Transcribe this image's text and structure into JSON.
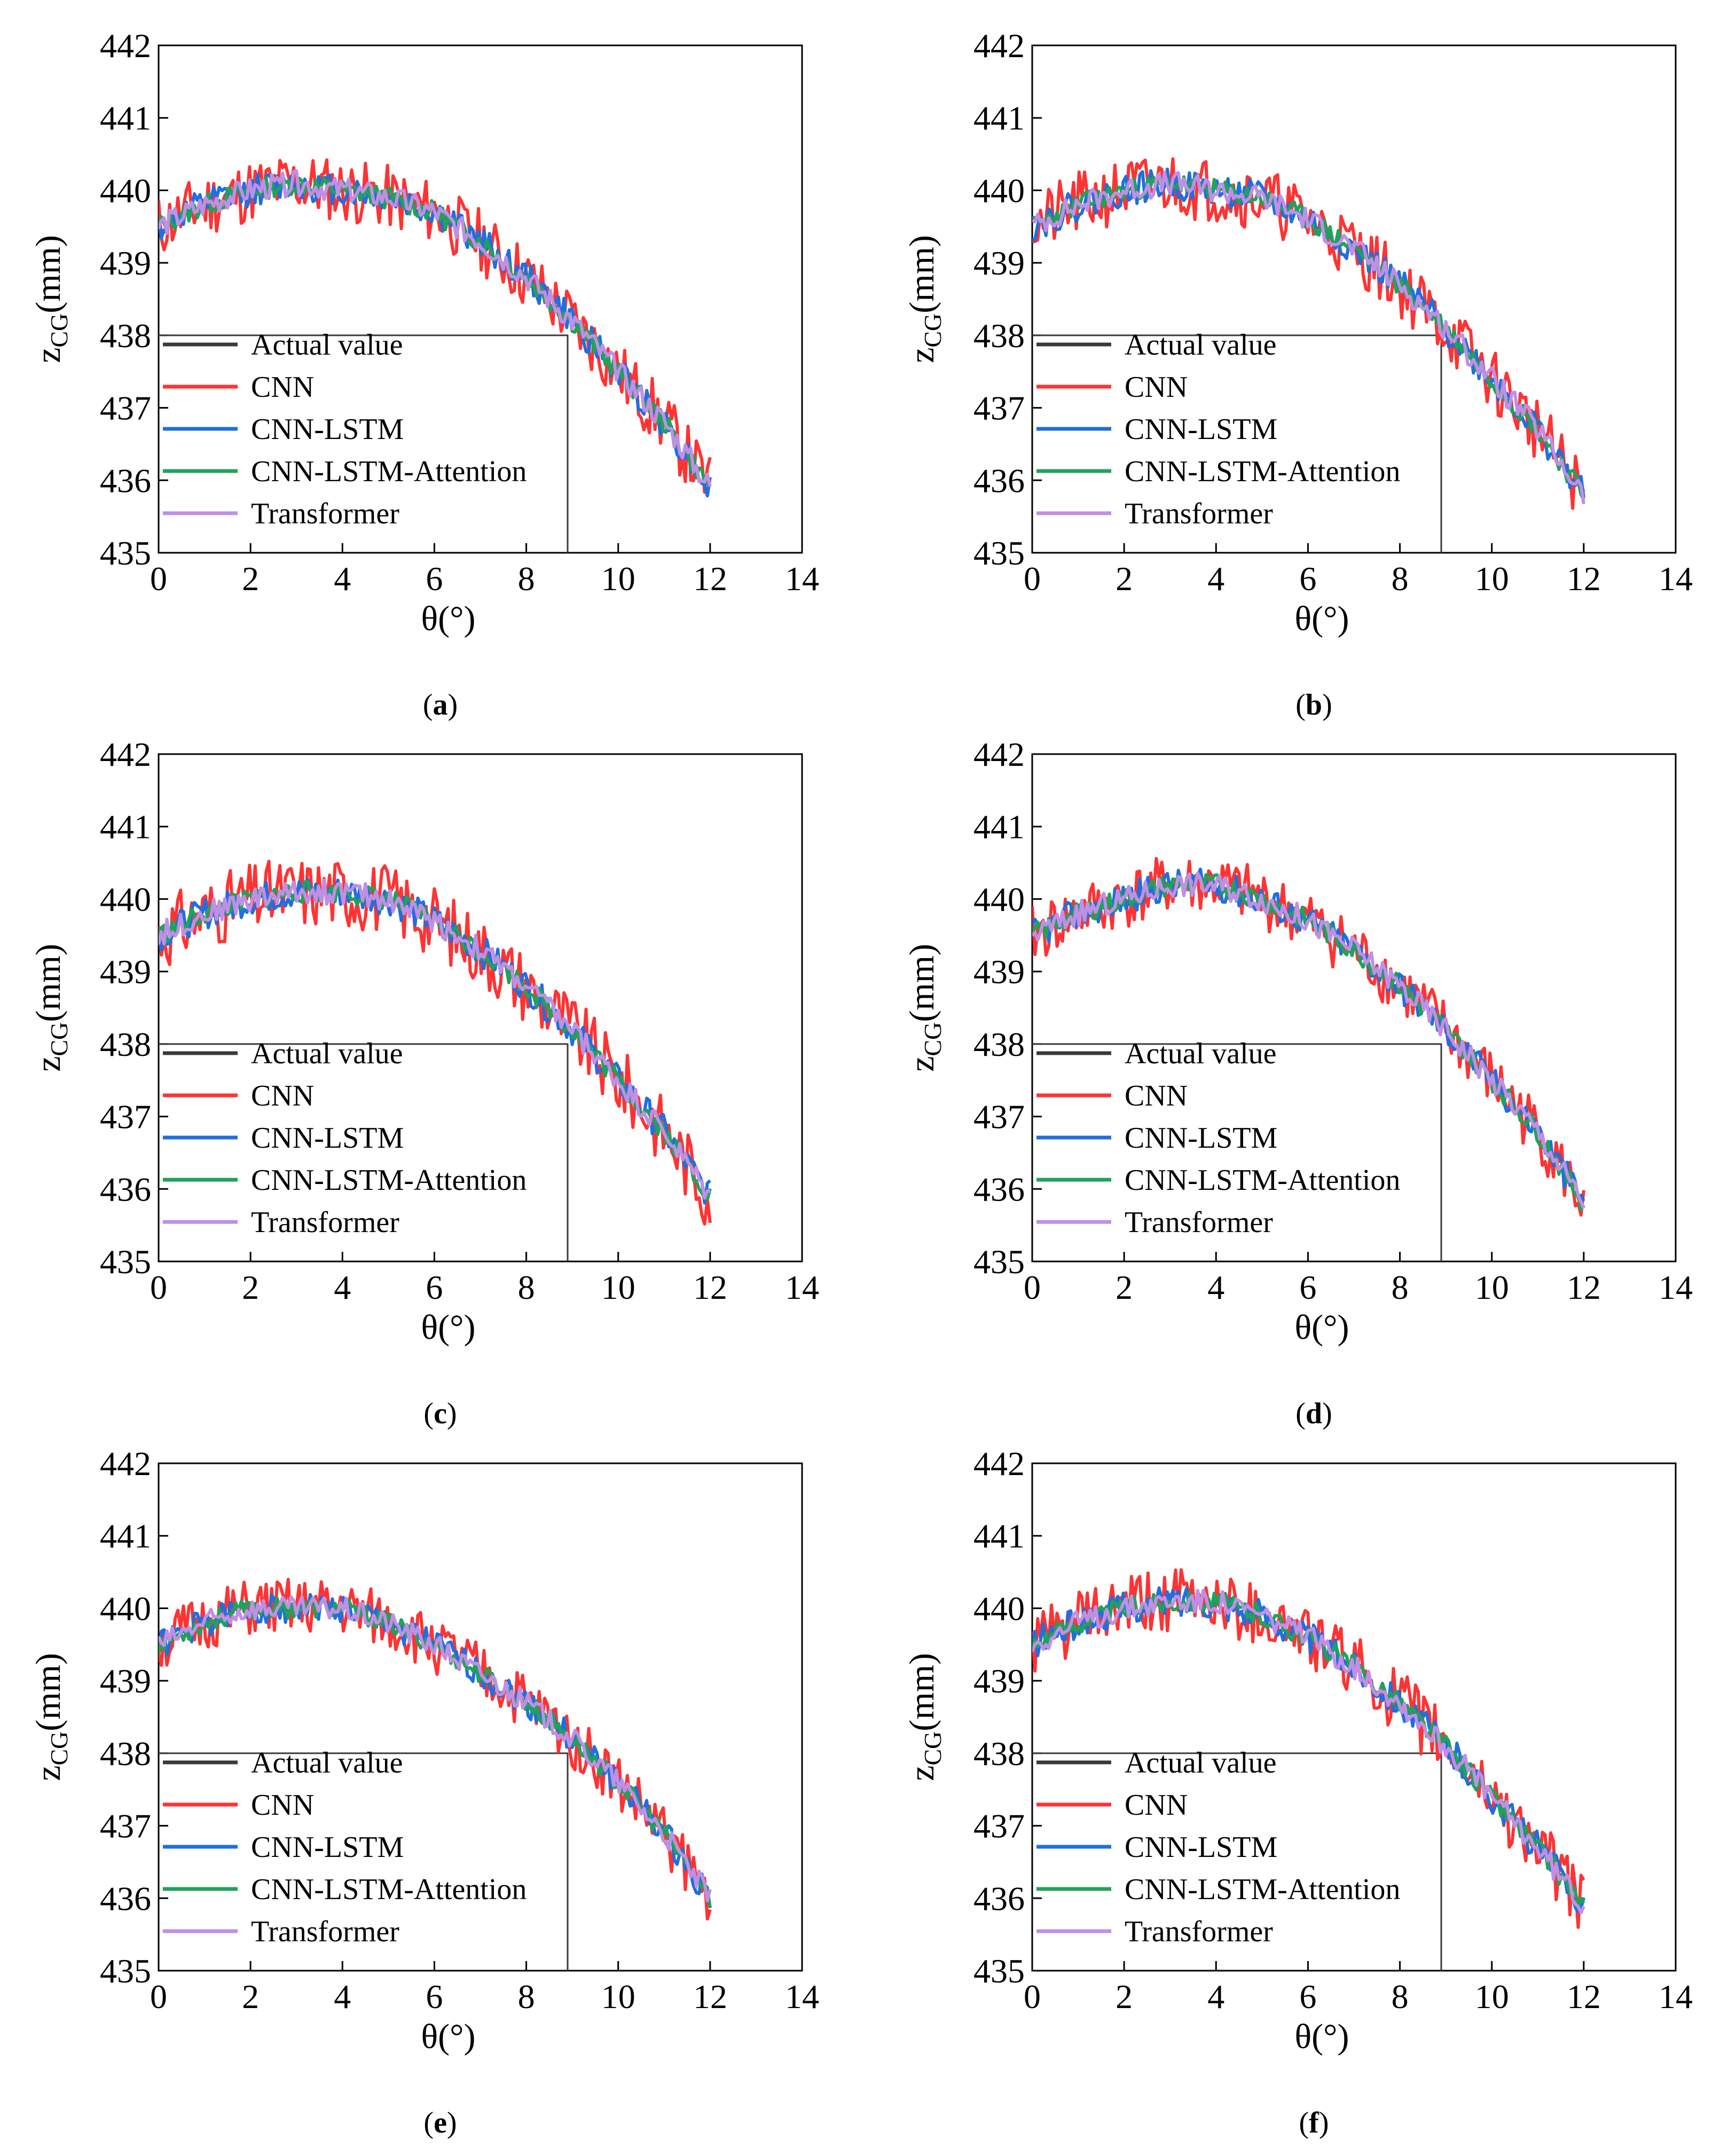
{
  "figure": {
    "panel_count": 6
  },
  "chart_data": [
    {
      "type": "line",
      "caption": "a",
      "xlabel": "θ(°)",
      "ylabel": "z",
      "ylabel_subscript": "CG",
      "ylabel_unit": "(mm)",
      "xlim": [
        0,
        14
      ],
      "ylim": [
        435,
        442
      ],
      "xticks": [
        "0",
        "2",
        "4",
        "6",
        "8",
        "10",
        "12",
        "14"
      ],
      "yticks": [
        "435",
        "436",
        "437",
        "438",
        "439",
        "440",
        "441",
        "442"
      ],
      "legend": {
        "placement": "bottom-left",
        "entries": [
          "Actual value",
          "CNN",
          "CNN-LSTM",
          "CNN-LSTM-Attention",
          "Transformer"
        ]
      },
      "series": [
        {
          "name": "Actual value",
          "color": "#3a3a3a",
          "x": [
            0,
            8.9,
            8.9
          ],
          "y": [
            438,
            438,
            435
          ]
        },
        {
          "name": "CNN",
          "color": "#ff3333",
          "noise": 0.45,
          "seed": 11
        },
        {
          "name": "CNN-LSTM",
          "color": "#1f6fe0",
          "noise": 0.22,
          "seed": 12
        },
        {
          "name": "CNN-LSTM-Attention",
          "color": "#1fa35a",
          "noise": 0.15,
          "seed": 13
        },
        {
          "name": "Transformer",
          "color": "#c08fe6",
          "noise": 0.17,
          "seed": 14
        }
      ],
      "trend": {
        "x": [
          0,
          1,
          2,
          3,
          4,
          5,
          6,
          7,
          8,
          9,
          10,
          11,
          12
        ],
        "y": [
          439.5,
          439.8,
          440.0,
          440.1,
          440.0,
          439.9,
          439.7,
          439.3,
          438.8,
          438.2,
          437.5,
          436.8,
          435.9
        ]
      }
    },
    {
      "type": "line",
      "caption": "b",
      "xlabel": "θ(°)",
      "ylabel": "z",
      "ylabel_subscript": "CG",
      "ylabel_unit": "(mm)",
      "xlim": [
        0,
        14
      ],
      "ylim": [
        435,
        442
      ],
      "xticks": [
        "0",
        "2",
        "4",
        "6",
        "8",
        "10",
        "12",
        "14"
      ],
      "yticks": [
        "435",
        "436",
        "437",
        "438",
        "439",
        "440",
        "441",
        "442"
      ],
      "legend": {
        "placement": "bottom-left",
        "entries": [
          "Actual value",
          "CNN",
          "CNN-LSTM",
          "CNN-LSTM-Attention",
          "Transformer"
        ]
      },
      "series": [
        {
          "name": "Actual value",
          "color": "#3a3a3a",
          "x": [
            0,
            8.9,
            8.9
          ],
          "y": [
            438,
            438,
            435
          ]
        },
        {
          "name": "CNN",
          "color": "#ff3333",
          "noise": 0.45,
          "seed": 21
        },
        {
          "name": "CNN-LSTM",
          "color": "#1f6fe0",
          "noise": 0.22,
          "seed": 22
        },
        {
          "name": "CNN-LSTM-Attention",
          "color": "#1fa35a",
          "noise": 0.15,
          "seed": 23
        },
        {
          "name": "Transformer",
          "color": "#c08fe6",
          "noise": 0.17,
          "seed": 24
        }
      ],
      "trend": {
        "x": [
          0,
          1,
          2,
          3,
          4,
          5,
          6,
          7,
          8,
          9,
          10,
          11,
          12
        ],
        "y": [
          439.5,
          439.8,
          440.0,
          440.1,
          440.0,
          439.9,
          439.6,
          439.2,
          438.7,
          438.1,
          437.4,
          436.7,
          435.8
        ]
      }
    },
    {
      "type": "line",
      "caption": "c",
      "xlabel": "θ(°)",
      "ylabel": "z",
      "ylabel_subscript": "CG",
      "ylabel_unit": "(mm)",
      "xlim": [
        0,
        14
      ],
      "ylim": [
        435,
        442
      ],
      "xticks": [
        "0",
        "2",
        "4",
        "6",
        "8",
        "10",
        "12",
        "14"
      ],
      "yticks": [
        "435",
        "436",
        "437",
        "438",
        "439",
        "440",
        "441",
        "442"
      ],
      "legend": {
        "placement": "bottom-left",
        "entries": [
          "Actual value",
          "CNN",
          "CNN-LSTM",
          "CNN-LSTM-Attention",
          "Transformer"
        ]
      },
      "series": [
        {
          "name": "Actual value",
          "color": "#3a3a3a",
          "x": [
            0,
            8.9,
            8.9
          ],
          "y": [
            438,
            438,
            435
          ]
        },
        {
          "name": "CNN",
          "color": "#ff3333",
          "noise": 0.5,
          "seed": 31
        },
        {
          "name": "CNN-LSTM",
          "color": "#1f6fe0",
          "noise": 0.22,
          "seed": 32
        },
        {
          "name": "CNN-LSTM-Attention",
          "color": "#1fa35a",
          "noise": 0.15,
          "seed": 33
        },
        {
          "name": "Transformer",
          "color": "#c08fe6",
          "noise": 0.17,
          "seed": 34
        }
      ],
      "trend": {
        "x": [
          0,
          1,
          2,
          3,
          4,
          5,
          6,
          7,
          8,
          9,
          10,
          11,
          12
        ],
        "y": [
          439.5,
          439.8,
          440.0,
          440.1,
          440.1,
          440.0,
          439.7,
          439.3,
          438.8,
          438.2,
          437.5,
          436.8,
          435.9
        ]
      }
    },
    {
      "type": "line",
      "caption": "d",
      "xlabel": "θ(°)",
      "ylabel": "z",
      "ylabel_subscript": "CG",
      "ylabel_unit": "(mm)",
      "xlim": [
        0,
        14
      ],
      "ylim": [
        435,
        442
      ],
      "xticks": [
        "0",
        "2",
        "4",
        "6",
        "8",
        "10",
        "12",
        "14"
      ],
      "yticks": [
        "435",
        "436",
        "437",
        "438",
        "439",
        "440",
        "441",
        "442"
      ],
      "legend": {
        "placement": "bottom-left",
        "entries": [
          "Actual value",
          "CNN",
          "CNN-LSTM",
          "CNN-LSTM-Attention",
          "Transformer"
        ]
      },
      "series": [
        {
          "name": "Actual value",
          "color": "#3a3a3a",
          "x": [
            0,
            8.9,
            8.9
          ],
          "y": [
            438,
            438,
            435
          ]
        },
        {
          "name": "CNN",
          "color": "#ff3333",
          "noise": 0.42,
          "seed": 41
        },
        {
          "name": "CNN-LSTM",
          "color": "#1f6fe0",
          "noise": 0.22,
          "seed": 42
        },
        {
          "name": "CNN-LSTM-Attention",
          "color": "#1fa35a",
          "noise": 0.15,
          "seed": 43
        },
        {
          "name": "Transformer",
          "color": "#c08fe6",
          "noise": 0.17,
          "seed": 44
        }
      ],
      "trend": {
        "x": [
          0,
          1,
          2,
          3,
          4,
          5,
          6,
          7,
          8,
          9,
          10,
          11,
          12
        ],
        "y": [
          439.5,
          439.8,
          440.0,
          440.2,
          440.2,
          440.0,
          439.7,
          439.3,
          438.8,
          438.2,
          437.5,
          436.8,
          435.8
        ]
      }
    },
    {
      "type": "line",
      "caption": "e",
      "xlabel": "θ(°)",
      "ylabel": "z",
      "ylabel_subscript": "CG",
      "ylabel_unit": "(mm)",
      "xlim": [
        0,
        14
      ],
      "ylim": [
        435,
        442
      ],
      "xticks": [
        "0",
        "2",
        "4",
        "6",
        "8",
        "10",
        "12",
        "14"
      ],
      "yticks": [
        "435",
        "436",
        "437",
        "438",
        "439",
        "440",
        "441",
        "442"
      ],
      "legend": {
        "placement": "bottom-left",
        "entries": [
          "Actual value",
          "CNN",
          "CNN-LSTM",
          "CNN-LSTM-Attention",
          "Transformer"
        ]
      },
      "series": [
        {
          "name": "Actual value",
          "color": "#3a3a3a",
          "x": [
            0,
            8.9,
            8.9
          ],
          "y": [
            438,
            438,
            435
          ]
        },
        {
          "name": "CNN",
          "color": "#ff3333",
          "noise": 0.4,
          "seed": 51
        },
        {
          "name": "CNN-LSTM",
          "color": "#1f6fe0",
          "noise": 0.2,
          "seed": 52
        },
        {
          "name": "CNN-LSTM-Attention",
          "color": "#1fa35a",
          "noise": 0.14,
          "seed": 53
        },
        {
          "name": "Transformer",
          "color": "#c08fe6",
          "noise": 0.16,
          "seed": 54
        }
      ],
      "trend": {
        "x": [
          0,
          1,
          2,
          3,
          4,
          5,
          6,
          7,
          8,
          9,
          10,
          11,
          12
        ],
        "y": [
          439.5,
          439.8,
          440.0,
          440.0,
          440.0,
          439.8,
          439.5,
          439.1,
          438.7,
          438.2,
          437.6,
          436.9,
          436.0
        ]
      }
    },
    {
      "type": "line",
      "caption": "f",
      "xlabel": "θ(°)",
      "ylabel": "z",
      "ylabel_subscript": "CG",
      "ylabel_unit": "(mm)",
      "xlim": [
        0,
        14
      ],
      "ylim": [
        435,
        442
      ],
      "xticks": [
        "0",
        "2",
        "4",
        "6",
        "8",
        "10",
        "12",
        "14"
      ],
      "yticks": [
        "435",
        "436",
        "437",
        "438",
        "439",
        "440",
        "441",
        "442"
      ],
      "legend": {
        "placement": "bottom-left",
        "entries": [
          "Actual value",
          "CNN",
          "CNN-LSTM",
          "CNN-LSTM-Attention",
          "Transformer"
        ]
      },
      "series": [
        {
          "name": "Actual value",
          "color": "#3a3a3a",
          "x": [
            0,
            8.9,
            8.9
          ],
          "y": [
            438,
            438,
            435
          ]
        },
        {
          "name": "CNN",
          "color": "#ff3333",
          "noise": 0.45,
          "seed": 61
        },
        {
          "name": "CNN-LSTM",
          "color": "#1f6fe0",
          "noise": 0.22,
          "seed": 62
        },
        {
          "name": "CNN-LSTM-Attention",
          "color": "#1fa35a",
          "noise": 0.15,
          "seed": 63
        },
        {
          "name": "Transformer",
          "color": "#c08fe6",
          "noise": 0.17,
          "seed": 64
        }
      ],
      "trend": {
        "x": [
          0,
          1,
          2,
          3,
          4,
          5,
          6,
          7,
          8,
          9,
          10,
          11,
          12
        ],
        "y": [
          439.5,
          439.8,
          440.0,
          440.1,
          440.1,
          439.9,
          439.6,
          439.2,
          438.7,
          438.1,
          437.4,
          436.7,
          435.9
        ]
      }
    }
  ]
}
